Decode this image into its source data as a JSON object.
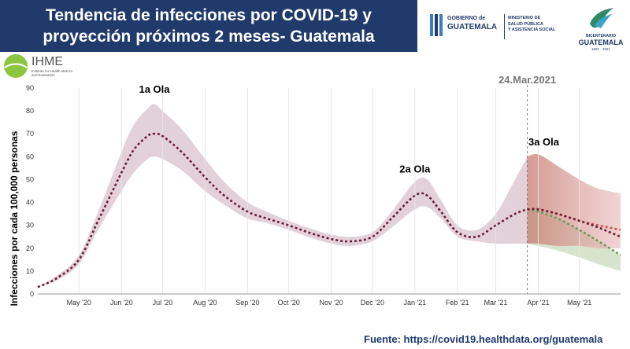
{
  "header": {
    "title_line1": "Tendencia de infecciones por COVID-19 y",
    "title_line2": "proyección próximos 2 meses- Guatemala"
  },
  "logos": {
    "gov_line1": "GOBIERNO de",
    "gov_line2": "GUATEMALA",
    "ministry_line1": "MINISTERIO DE",
    "ministry_line2": "SALUD PÚBLICA",
    "ministry_line3": "Y ASISTENCIA SOCIAL",
    "bicentenario_line1": "BICENTENARIO",
    "bicentenario_line2": "GUATEMALA",
    "bicentenario_years": "1821 · 2021",
    "ihme_name": "IHME",
    "ihme_sub1": "Institute for Health Metrics",
    "ihme_sub2": "and Evaluation"
  },
  "footer": {
    "source": "Fuente: https://covid19.healthdata.org/guatemala"
  },
  "colors": {
    "banner": "#1f3a6b",
    "band": "#d9c1cd",
    "line": "#6b1e36",
    "proj_red": "#c95252",
    "proj_green": "#6a9a5a",
    "proj_band_red": "#e7b7b7",
    "proj_band_green": "#c7d7b9"
  },
  "chart_data": {
    "type": "line",
    "ylabel": "Infecciones por cada 100,000 personas",
    "ylim": [
      0,
      90
    ],
    "yticks": [
      0,
      10,
      20,
      30,
      40,
      50,
      60,
      70,
      80,
      90
    ],
    "xlim": [
      "2020-04-01",
      "2021-05-31"
    ],
    "xticks": [
      {
        "date": "2020-05-01",
        "label": "May '20"
      },
      {
        "date": "2020-06-01",
        "label": "Jun '20"
      },
      {
        "date": "2020-07-01",
        "label": "Jul '20"
      },
      {
        "date": "2020-08-01",
        "label": "Aug '20"
      },
      {
        "date": "2020-09-01",
        "label": "Sep '20"
      },
      {
        "date": "2020-10-01",
        "label": "Oct '20"
      },
      {
        "date": "2020-11-01",
        "label": "Nov '20"
      },
      {
        "date": "2020-12-01",
        "label": "Dec '20"
      },
      {
        "date": "2021-01-01",
        "label": "Jan '21"
      },
      {
        "date": "2021-02-01",
        "label": "Feb '21"
      },
      {
        "date": "2021-03-01",
        "label": "Mar '21"
      },
      {
        "date": "2021-04-01",
        "label": "Apr '21"
      },
      {
        "date": "2021-05-01",
        "label": "May '21"
      }
    ],
    "grid": "vertical",
    "series": [
      {
        "style": "dotted",
        "x": [
          "2020-04-01",
          "2020-04-15",
          "2020-05-01",
          "2020-05-15",
          "2020-06-01",
          "2020-06-10",
          "2020-06-20",
          "2020-06-25",
          "2020-07-01",
          "2020-07-15",
          "2020-08-01",
          "2020-08-15",
          "2020-09-01",
          "2020-09-15",
          "2020-10-01",
          "2020-10-15",
          "2020-11-01",
          "2020-11-15",
          "2020-12-01",
          "2020-12-15",
          "2021-01-01",
          "2021-01-10",
          "2021-01-20",
          "2021-02-01",
          "2021-02-15",
          "2021-03-01",
          "2021-03-15",
          "2021-03-24"
        ],
        "values": [
          3,
          7,
          15,
          32,
          53,
          63,
          69,
          70,
          69,
          62,
          51,
          43,
          36,
          33,
          30,
          27,
          24,
          23,
          25,
          33,
          43,
          43,
          36,
          27,
          25,
          30,
          35,
          37
        ],
        "lower": [
          3,
          6,
          13,
          28,
          45,
          53,
          59,
          60,
          59,
          54,
          45,
          39,
          33,
          31,
          28,
          25,
          22,
          21,
          23,
          29,
          37,
          38,
          33,
          25,
          23,
          22,
          22,
          22
        ],
        "upper": [
          3,
          8,
          17,
          36,
          62,
          74,
          81,
          83,
          80,
          72,
          59,
          49,
          40,
          36,
          32,
          29,
          26,
          25,
          27,
          36,
          49,
          50,
          41,
          30,
          28,
          35,
          50,
          60
        ]
      },
      {
        "style": "dotted",
        "x": [
          "2021-03-24",
          "2021-04-01",
          "2021-04-15",
          "2021-05-01",
          "2021-05-15",
          "2021-05-31"
        ],
        "values": [
          37,
          37,
          35,
          32,
          30,
          28
        ],
        "lower": [
          22,
          22,
          21,
          21,
          20,
          20
        ],
        "upper": [
          60,
          61,
          56,
          50,
          46,
          44
        ]
      },
      {
        "style": "dotted",
        "x": [
          "2021-03-24",
          "2021-04-01",
          "2021-04-15",
          "2021-05-01",
          "2021-05-15",
          "2021-05-31"
        ],
        "values": [
          37,
          36,
          33,
          28,
          23,
          17
        ],
        "lower": [
          22,
          21,
          19,
          16,
          13,
          10
        ],
        "upper": [
          37,
          36,
          33,
          28,
          23,
          17
        ]
      },
      {
        "style": "dotted",
        "x": [
          "2021-03-24",
          "2021-04-01",
          "2021-04-15",
          "2021-05-01",
          "2021-05-15",
          "2021-05-31"
        ],
        "values": [
          37,
          37,
          35,
          32,
          29,
          25
        ],
        "lower": [],
        "upper": []
      }
    ],
    "marker": {
      "date": "2021-03-24",
      "label": "24.Mar.2021"
    },
    "annotations": [
      {
        "text": "1a Ola",
        "date": "2020-06-25",
        "y": 88
      },
      {
        "text": "2a Ola",
        "date": "2021-01-01",
        "y": 53
      },
      {
        "text": "3a Ola",
        "date": "2021-04-05",
        "y": 65
      }
    ]
  }
}
